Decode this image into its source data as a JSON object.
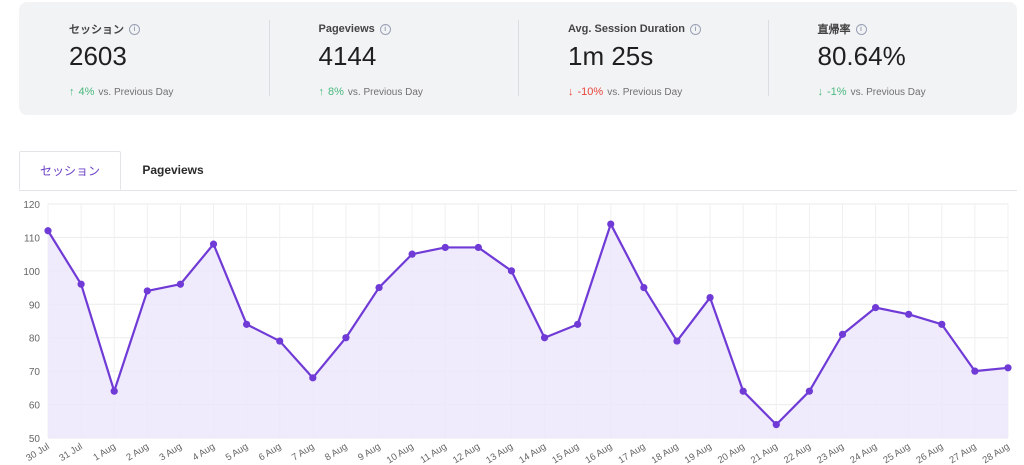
{
  "stats": [
    {
      "label": "セッション",
      "value": "2603",
      "delta": "4%",
      "direction": "up",
      "suffix": "vs. Previous Day"
    },
    {
      "label": "Pageviews",
      "value": "4144",
      "delta": "8%",
      "direction": "up",
      "suffix": "vs. Previous Day"
    },
    {
      "label": "Avg. Session Duration",
      "value": "1m 25s",
      "delta": "-10%",
      "direction": "down",
      "suffix": "vs. Previous Day"
    },
    {
      "label": "直帰率",
      "value": "80.64%",
      "delta": "-1%",
      "direction": "down-good",
      "suffix": "vs. Previous Day"
    }
  ],
  "tabs": [
    {
      "label": "セッション",
      "active": true
    },
    {
      "label": "Pageviews",
      "active": false
    }
  ],
  "colors": {
    "line": "#6f3ad6",
    "fill": "#ece6fb",
    "up": "#4bb97f",
    "down": "#e8453c"
  },
  "chart_data": {
    "type": "area",
    "x": [
      "30 Jul",
      "31 Jul",
      "1 Aug",
      "2 Aug",
      "3 Aug",
      "4 Aug",
      "5 Aug",
      "6 Aug",
      "7 Aug",
      "8 Aug",
      "9 Aug",
      "10 Aug",
      "11 Aug",
      "12 Aug",
      "13 Aug",
      "14 Aug",
      "15 Aug",
      "16 Aug",
      "17 Aug",
      "18 Aug",
      "19 Aug",
      "20 Aug",
      "21 Aug",
      "22 Aug",
      "23 Aug",
      "24 Aug",
      "25 Aug",
      "26 Aug",
      "27 Aug",
      "28 Aug"
    ],
    "series": [
      {
        "values": [
          112,
          96,
          64,
          94,
          96,
          108,
          84,
          79,
          68,
          80,
          95,
          105,
          107,
          107,
          100,
          80,
          84,
          114,
          95,
          79,
          92,
          64,
          54,
          64,
          81,
          89,
          87,
          84,
          70,
          71
        ]
      }
    ],
    "yticks": [
      50,
      60,
      70,
      80,
      90,
      100,
      110,
      120
    ],
    "ylim": [
      50,
      120
    ],
    "grid": true
  }
}
